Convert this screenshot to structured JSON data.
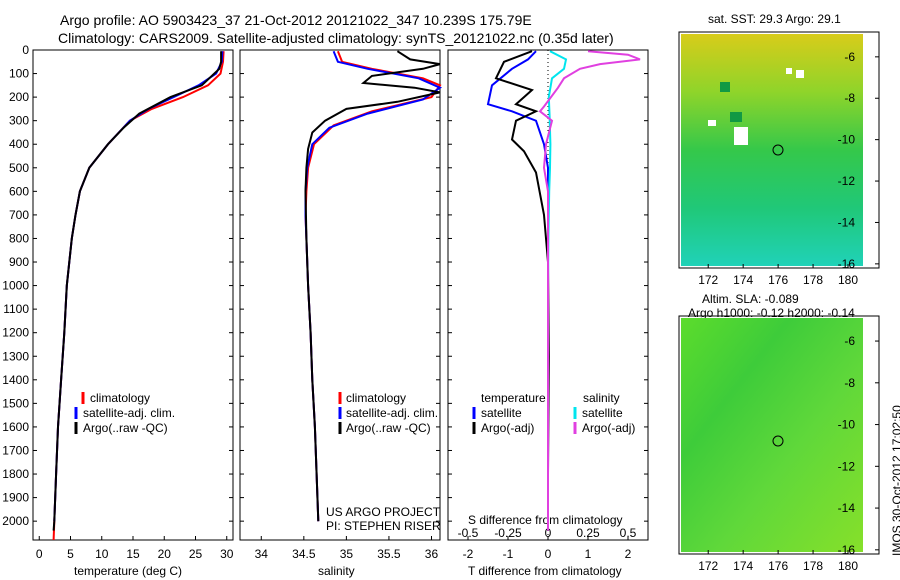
{
  "header": {
    "title_line1": "Argo profile: AO 5903423_37 21-Oct-2012 20121022_347 10.239S 175.79E",
    "title_line2": "Climatology: CARS2009. Satellite-adjusted climatology: synTS_20121022.nc (0.35d later)"
  },
  "colors": {
    "climatology": "#ff0000",
    "satellite": "#0000ff",
    "argo": "#000000",
    "sal_satellite": "#00e5ee",
    "sal_argo": "#e040e0"
  },
  "depth_axis": {
    "ticks": [
      "0",
      "100",
      "200",
      "300",
      "400",
      "500",
      "600",
      "700",
      "800",
      "900",
      "1000",
      "1100",
      "1200",
      "1300",
      "1400",
      "1500",
      "1600",
      "1700",
      "1800",
      "1900",
      "2000"
    ],
    "range": [
      0,
      2080
    ],
    "inverted": true
  },
  "temp_panel": {
    "xlabel": "temperature (deg C)",
    "xticks": [
      "0",
      "5",
      "10",
      "15",
      "20",
      "25",
      "30"
    ],
    "legend": [
      "climatology",
      "satellite-adj. clim.",
      "Argo(..raw -QC)"
    ]
  },
  "sal_panel": {
    "xlabel": "salinity",
    "xticks": [
      "34",
      "34.5",
      "35",
      "35.5",
      "36"
    ],
    "legend": [
      "climatology",
      "satellite-adj. clim.",
      "Argo(..raw -QC)"
    ],
    "credit1": "US ARGO PROJECT",
    "credit2": "PI: STEPHEN RISER"
  },
  "diff_panel": {
    "xlabel": "T difference from climatology",
    "top_label": "S difference from climatology",
    "xticks": [
      "-2",
      "-1",
      "0",
      "1",
      "2"
    ],
    "sticks": [
      "-0.5",
      "-0.25",
      "0",
      "0.25",
      "0.5"
    ],
    "legend_temp_title": "temperature",
    "legend_sal_title": "salinity",
    "legend_temp": [
      "satellite",
      "Argo(-adj)"
    ],
    "legend_sal": [
      "satellite",
      "Argo(-adj)"
    ]
  },
  "map_sst": {
    "title": "sat. SST: 29.3 Argo: 29.1",
    "xticks": [
      "172",
      "174",
      "176",
      "178",
      "180"
    ],
    "yticks": [
      "-6",
      "-8",
      "-10",
      "-12",
      "-14",
      "-16"
    ]
  },
  "map_sla": {
    "title1": "Altim. SLA: -0.089",
    "title2": "Argo h1000: -0.12 h2000: -0.14",
    "xticks": [
      "172",
      "174",
      "176",
      "178",
      "180"
    ],
    "yticks": [
      "-6",
      "-8",
      "-10",
      "-12",
      "-14",
      "-16"
    ]
  },
  "footer": {
    "stamp": "IMOS 30-Oct-2012 17:02:50"
  },
  "chart_data": [
    {
      "type": "line",
      "xlabel": "temperature (deg C)",
      "xlim": [
        -1,
        31
      ],
      "ylim": [
        2080,
        0
      ],
      "series": [
        {
          "name": "climatology",
          "color": "#ff0000",
          "points": [
            [
              29.5,
              5
            ],
            [
              29.4,
              50
            ],
            [
              29,
              100
            ],
            [
              27,
              150
            ],
            [
              23,
              200
            ],
            [
              18,
              250
            ],
            [
              14.5,
              300
            ],
            [
              11,
              400
            ],
            [
              8,
              500
            ],
            [
              6.5,
              600
            ],
            [
              5.8,
              700
            ],
            [
              5.2,
              800
            ],
            [
              4.8,
              900
            ],
            [
              4.4,
              1000
            ],
            [
              4,
              1200
            ],
            [
              3.5,
              1400
            ],
            [
              3,
              1600
            ],
            [
              2.7,
              1800
            ],
            [
              2.4,
              2000
            ],
            [
              2.3,
              2080
            ]
          ]
        },
        {
          "name": "satellite-adj. clim.",
          "color": "#0000ff",
          "points": [
            [
              29.3,
              5
            ],
            [
              29.2,
              50
            ],
            [
              28.3,
              100
            ],
            [
              25.5,
              150
            ],
            [
              21.5,
              200
            ],
            [
              17.5,
              250
            ],
            [
              14.5,
              300
            ],
            [
              11,
              400
            ],
            [
              8,
              500
            ],
            [
              6.5,
              600
            ],
            [
              5.8,
              700
            ],
            [
              5.2,
              800
            ],
            [
              4.8,
              900
            ],
            [
              4.4,
              1000
            ],
            [
              4,
              1200
            ],
            [
              3.5,
              1400
            ],
            [
              3,
              1600
            ],
            [
              2.7,
              1800
            ],
            [
              2.4,
              2000
            ]
          ]
        },
        {
          "name": "Argo(..raw -QC)",
          "color": "#000000",
          "points": [
            [
              29.1,
              5
            ],
            [
              29.1,
              50
            ],
            [
              28.8,
              80
            ],
            [
              26,
              150
            ],
            [
              21,
              200
            ],
            [
              16,
              270
            ],
            [
              13.5,
              330
            ],
            [
              11,
              400
            ],
            [
              8,
              500
            ],
            [
              6.5,
              600
            ],
            [
              5.8,
              700
            ],
            [
              5.2,
              800
            ],
            [
              4.8,
              900
            ],
            [
              4.4,
              1000
            ],
            [
              4,
              1200
            ],
            [
              3.5,
              1400
            ],
            [
              3,
              1600
            ],
            [
              2.7,
              1800
            ],
            [
              2.4,
              2000
            ],
            [
              2.3,
              2040
            ]
          ]
        }
      ]
    },
    {
      "type": "line",
      "xlabel": "salinity",
      "xlim": [
        33.75,
        36.1
      ],
      "ylim": [
        2080,
        0
      ],
      "series": [
        {
          "name": "climatology",
          "color": "#ff0000",
          "points": [
            [
              34.9,
              5
            ],
            [
              34.95,
              50
            ],
            [
              35.3,
              80
            ],
            [
              35.9,
              120
            ],
            [
              36.1,
              150
            ],
            [
              36.0,
              200
            ],
            [
              35.3,
              260
            ],
            [
              34.85,
              320
            ],
            [
              34.62,
              400
            ],
            [
              34.55,
              500
            ],
            [
              34.53,
              600
            ],
            [
              34.52,
              700
            ],
            [
              34.53,
              800
            ],
            [
              34.55,
              1000
            ],
            [
              34.58,
              1200
            ],
            [
              34.6,
              1400
            ],
            [
              34.63,
              1600
            ],
            [
              34.65,
              1800
            ],
            [
              34.67,
              2000
            ]
          ]
        },
        {
          "name": "satellite-adj. clim.",
          "color": "#0000ff",
          "points": [
            [
              34.85,
              5
            ],
            [
              34.9,
              50
            ],
            [
              35.25,
              80
            ],
            [
              35.85,
              120
            ],
            [
              36.1,
              160
            ],
            [
              35.9,
              210
            ],
            [
              35.25,
              270
            ],
            [
              34.8,
              330
            ],
            [
              34.6,
              400
            ],
            [
              34.54,
              500
            ],
            [
              34.52,
              600
            ],
            [
              34.52,
              700
            ],
            [
              34.53,
              800
            ],
            [
              34.55,
              1000
            ],
            [
              34.58,
              1200
            ],
            [
              34.6,
              1400
            ],
            [
              34.63,
              1600
            ],
            [
              34.65,
              1800
            ],
            [
              34.67,
              2000
            ]
          ]
        },
        {
          "name": "Argo(..raw -QC)",
          "color": "#000000",
          "points": [
            [
              35.6,
              5
            ],
            [
              35.75,
              40
            ],
            [
              36.1,
              60
            ],
            [
              35.9,
              80
            ],
            [
              35.3,
              110
            ],
            [
              35.2,
              140
            ],
            [
              35.8,
              160
            ],
            [
              36.1,
              180
            ],
            [
              35.6,
              220
            ],
            [
              35.0,
              250
            ],
            [
              34.75,
              300
            ],
            [
              34.6,
              350
            ],
            [
              34.55,
              420
            ],
            [
              34.53,
              500
            ],
            [
              34.52,
              600
            ],
            [
              34.53,
              800
            ],
            [
              34.55,
              1000
            ],
            [
              34.58,
              1200
            ],
            [
              34.6,
              1400
            ],
            [
              34.63,
              1600
            ],
            [
              34.65,
              1800
            ],
            [
              34.67,
              2000
            ]
          ]
        }
      ]
    },
    {
      "type": "line",
      "xlabel": "T difference from climatology",
      "top_label": "S difference from climatology",
      "xlim": [
        -2.5,
        2.5
      ],
      "ylim": [
        2080,
        0
      ],
      "series": [
        {
          "name": "temperature satellite",
          "color": "#0000ff",
          "points": [
            [
              -0.3,
              5
            ],
            [
              -0.5,
              40
            ],
            [
              -0.9,
              80
            ],
            [
              -1.4,
              150
            ],
            [
              -1.5,
              230
            ],
            [
              -0.9,
              260
            ],
            [
              -0.3,
              300
            ],
            [
              -0.1,
              400
            ],
            [
              0,
              500
            ],
            [
              0,
              2000
            ]
          ]
        },
        {
          "name": "temperature Argo(-adj)",
          "color": "#000000",
          "points": [
            [
              -0.4,
              5
            ],
            [
              -1.1,
              50
            ],
            [
              -1.3,
              120
            ],
            [
              -0.4,
              170
            ],
            [
              -0.8,
              230
            ],
            [
              -0.3,
              260
            ],
            [
              -0.8,
              300
            ],
            [
              -0.9,
              380
            ],
            [
              -0.6,
              430
            ],
            [
              -0.3,
              520
            ],
            [
              -0.1,
              700
            ],
            [
              0,
              900
            ],
            [
              0.02,
              1300
            ],
            [
              0,
              1800
            ],
            [
              0,
              2040
            ]
          ]
        },
        {
          "name": "salinity satellite",
          "color": "#00e5ee",
          "points": [
            [
              0.05,
              5
            ],
            [
              0.45,
              40
            ],
            [
              0.4,
              80
            ],
            [
              0.1,
              120
            ],
            [
              0.02,
              200
            ],
            [
              0.04,
              280
            ],
            [
              0.06,
              400
            ],
            [
              0.05,
              500
            ],
            [
              0.03,
              600
            ],
            [
              0.01,
              800
            ],
            [
              0,
              1000
            ],
            [
              0,
              2000
            ]
          ]
        },
        {
          "name": "salinity Argo(-adj)",
          "color": "#e040e0",
          "points": [
            [
              1.0,
              5
            ],
            [
              2.0,
              20
            ],
            [
              2.3,
              40
            ],
            [
              1.3,
              60
            ],
            [
              0.8,
              80
            ],
            [
              0.4,
              120
            ],
            [
              0.25,
              160
            ],
            [
              -0.1,
              240
            ],
            [
              -0.2,
              260
            ],
            [
              0.1,
              300
            ],
            [
              -0.05,
              400
            ],
            [
              -0.1,
              500
            ],
            [
              0,
              600
            ],
            [
              0,
              800
            ],
            [
              0,
              2040
            ]
          ]
        }
      ]
    }
  ]
}
